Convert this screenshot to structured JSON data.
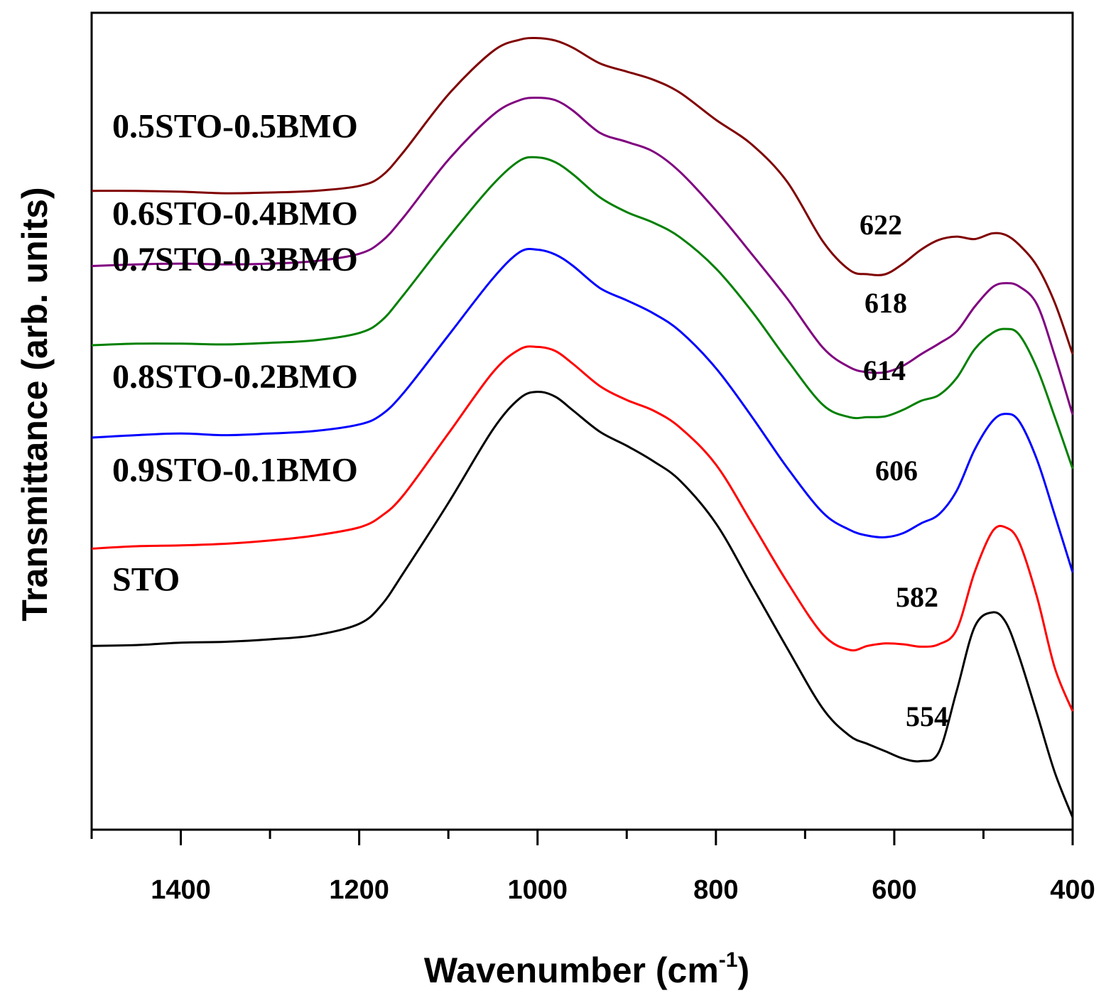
{
  "chart_data": {
    "type": "line",
    "title": "",
    "xlabel": "Wavenumber (cm",
    "xlabel_superscript": "-1",
    "xlabel_close": ")",
    "ylabel": "Transmittance (arb. units)",
    "xlim": [
      1500,
      400
    ],
    "ylim": [
      0,
      100
    ],
    "y_ticks_shown": false,
    "grid": false,
    "x_major_ticks": [
      1400,
      1200,
      1000,
      800,
      600,
      400
    ],
    "x_minor_ticks": [
      1500,
      1300,
      1100,
      900,
      700,
      500
    ],
    "x_tick_labels": [
      "1400",
      "1200",
      "1000",
      "800",
      "600",
      "400"
    ],
    "x": [
      1500,
      1450,
      1400,
      1350,
      1300,
      1250,
      1200,
      1175,
      1150,
      1100,
      1050,
      1020,
      1000,
      980,
      960,
      930,
      900,
      870,
      840,
      800,
      760,
      720,
      680,
      650,
      630,
      610,
      590,
      570,
      550,
      530,
      510,
      490,
      475,
      460,
      440,
      420,
      400
    ],
    "series": [
      {
        "name": "STO",
        "label": "STO",
        "color": "#000000",
        "peak_label": "554",
        "values": [
          22.5,
          22.6,
          22.9,
          23.0,
          23.3,
          23.8,
          25.2,
          27.5,
          31.5,
          40.0,
          49.0,
          52.8,
          53.6,
          53.0,
          51.3,
          48.7,
          47.0,
          45.1,
          42.7,
          37.5,
          29.9,
          22.2,
          14.8,
          11.5,
          10.5,
          9.6,
          8.7,
          8.4,
          9.5,
          17.0,
          24.8,
          26.6,
          25.4,
          21.2,
          14.2,
          7.0,
          1.5
        ]
      },
      {
        "name": "0.9STO-0.1BMO",
        "label": "0.9STO-0.1BMO",
        "color": "#ff0000",
        "peak_label": "582",
        "values": [
          34.4,
          34.7,
          34.8,
          35.0,
          35.4,
          36.0,
          37.0,
          38.4,
          41.0,
          48.5,
          56.0,
          58.8,
          59.1,
          58.6,
          57.0,
          54.3,
          52.6,
          51.3,
          49.2,
          44.7,
          37.6,
          30.3,
          23.9,
          22.0,
          22.5,
          22.8,
          22.7,
          22.4,
          22.7,
          24.5,
          31.5,
          36.5,
          37.0,
          35.2,
          28.5,
          19.8,
          14.5
        ]
      },
      {
        "name": "0.8STO-0.2BMO",
        "label": "0.8STO-0.2BMO",
        "color": "#0000ff",
        "peak_label": "606",
        "values": [
          48.0,
          48.3,
          48.5,
          48.3,
          48.5,
          48.8,
          49.6,
          50.8,
          53.5,
          60.5,
          67.5,
          70.7,
          71.0,
          70.4,
          69.0,
          66.3,
          64.8,
          63.2,
          61.0,
          56.5,
          50.6,
          44.3,
          38.8,
          36.7,
          36.0,
          35.8,
          36.3,
          37.5,
          38.6,
          41.5,
          46.5,
          50.0,
          50.9,
          50.0,
          45.3,
          38.5,
          31.5
        ]
      },
      {
        "name": "0.7STO-0.3BMO",
        "label": "0.7STO-0.3BMO",
        "color": "#008000",
        "peak_label": "614",
        "values": [
          59.3,
          59.5,
          59.5,
          59.4,
          59.6,
          59.9,
          60.8,
          62.3,
          65.5,
          72.5,
          79.0,
          81.9,
          82.3,
          81.7,
          80.2,
          77.4,
          75.6,
          74.3,
          72.5,
          68.7,
          63.5,
          57.5,
          52.0,
          50.5,
          50.5,
          50.6,
          51.4,
          52.5,
          53.2,
          55.3,
          58.8,
          60.8,
          61.3,
          60.6,
          56.5,
          50.5,
          44.2
        ]
      },
      {
        "name": "0.6STO-0.4BMO",
        "label": "0.6STO-0.4BMO",
        "color": "#800080",
        "peak_label": "618",
        "values": [
          69.0,
          69.2,
          69.3,
          69.2,
          69.3,
          69.6,
          70.5,
          72.0,
          75.0,
          82.0,
          87.5,
          89.3,
          89.6,
          89.3,
          88.0,
          85.3,
          84.2,
          83.0,
          80.5,
          75.8,
          70.5,
          65.0,
          59.0,
          56.6,
          56.0,
          56.0,
          56.8,
          58.2,
          59.5,
          61.0,
          64.0,
          66.4,
          66.9,
          66.5,
          64.3,
          58.0,
          50.8
        ]
      },
      {
        "name": "0.5STO-0.5BMO",
        "label": "0.5STO-0.5BMO",
        "color": "#800000",
        "peak_label": "622",
        "values": [
          78.2,
          78.2,
          78.1,
          77.9,
          78.0,
          78.2,
          78.8,
          80.0,
          83.0,
          90.0,
          95.3,
          96.7,
          96.9,
          96.6,
          95.7,
          93.8,
          92.8,
          91.8,
          90.2,
          86.9,
          83.9,
          79.3,
          72.0,
          68.5,
          68.0,
          68.0,
          69.3,
          71.0,
          72.2,
          72.6,
          72.3,
          73.0,
          72.8,
          71.6,
          69.0,
          64.5,
          58.2
        ]
      }
    ]
  }
}
